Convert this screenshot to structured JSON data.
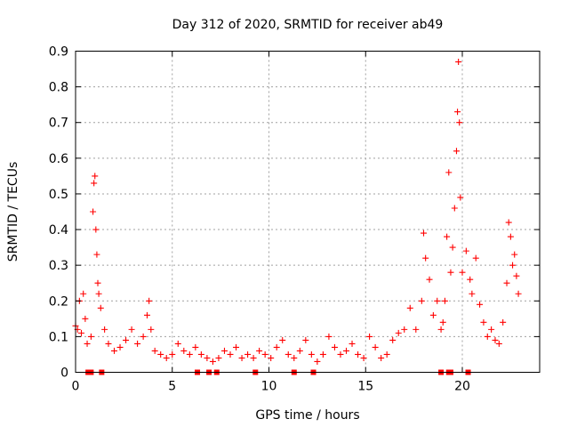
{
  "chart_data": {
    "type": "scatter",
    "title": "Day 312 of 2020, SRMTID for receiver ab49",
    "xlabel": "GPS time / hours",
    "ylabel": "SRMTID / TECUs",
    "xlim": [
      0,
      24
    ],
    "ylim": [
      0,
      0.9
    ],
    "xticks": [
      0,
      5,
      10,
      15,
      20
    ],
    "xtick_labels": [
      "0",
      "5",
      "10",
      "15",
      "20"
    ],
    "yticks": [
      0,
      0.1,
      0.2,
      0.3,
      0.4,
      0.5,
      0.6,
      0.7,
      0.8,
      0.9
    ],
    "ytick_labels": [
      "0",
      "0.1",
      "0.2",
      "0.3",
      "0.4",
      "0.5",
      "0.6",
      "0.7",
      "0.8",
      "0.9"
    ],
    "grid": true,
    "marker": "+",
    "marker_color": "#ff0000",
    "series": [
      {
        "name": "SRMTID",
        "x": [
          0.0,
          0.1,
          0.2,
          0.3,
          0.4,
          0.5,
          0.6,
          0.8,
          0.9,
          0.95,
          1.0,
          1.05,
          1.1,
          1.15,
          1.2,
          1.3,
          1.5,
          1.7,
          2.0,
          2.3,
          2.6,
          2.9,
          3.2,
          3.5,
          3.7,
          3.8,
          3.9,
          4.1,
          4.4,
          4.7,
          5.0,
          5.3,
          5.6,
          5.9,
          6.2,
          6.5,
          6.8,
          7.1,
          7.4,
          7.7,
          8.0,
          8.3,
          8.6,
          8.9,
          9.2,
          9.5,
          9.8,
          10.1,
          10.4,
          10.7,
          11.0,
          11.3,
          11.6,
          11.9,
          12.2,
          12.5,
          12.8,
          13.1,
          13.4,
          13.7,
          14.0,
          14.3,
          14.6,
          14.9,
          15.2,
          15.5,
          15.8,
          16.1,
          16.4,
          16.7,
          17.0,
          17.3,
          17.6,
          17.9,
          18.0,
          18.1,
          18.3,
          18.5,
          18.7,
          18.9,
          19.0,
          19.1,
          19.2,
          19.3,
          19.4,
          19.5,
          19.6,
          19.7,
          19.75,
          19.8,
          19.85,
          19.9,
          20.0,
          20.2,
          20.4,
          20.5,
          20.7,
          20.9,
          21.1,
          21.3,
          21.5,
          21.7,
          21.9,
          22.1,
          22.3,
          22.4,
          22.5,
          22.6,
          22.7,
          22.8,
          22.9
        ],
        "y": [
          0.13,
          0.12,
          0.2,
          0.11,
          0.22,
          0.15,
          0.08,
          0.1,
          0.45,
          0.53,
          0.55,
          0.4,
          0.33,
          0.25,
          0.22,
          0.18,
          0.12,
          0.08,
          0.06,
          0.07,
          0.09,
          0.12,
          0.08,
          0.1,
          0.16,
          0.2,
          0.12,
          0.06,
          0.05,
          0.04,
          0.05,
          0.08,
          0.06,
          0.05,
          0.07,
          0.05,
          0.04,
          0.03,
          0.04,
          0.06,
          0.05,
          0.07,
          0.04,
          0.05,
          0.04,
          0.06,
          0.05,
          0.04,
          0.07,
          0.09,
          0.05,
          0.04,
          0.06,
          0.09,
          0.05,
          0.03,
          0.05,
          0.1,
          0.07,
          0.05,
          0.06,
          0.08,
          0.05,
          0.04,
          0.1,
          0.07,
          0.04,
          0.05,
          0.09,
          0.11,
          0.12,
          0.18,
          0.12,
          0.2,
          0.39,
          0.32,
          0.26,
          0.16,
          0.2,
          0.12,
          0.14,
          0.2,
          0.38,
          0.56,
          0.28,
          0.35,
          0.46,
          0.62,
          0.73,
          0.87,
          0.7,
          0.49,
          0.28,
          0.34,
          0.26,
          0.22,
          0.32,
          0.19,
          0.14,
          0.1,
          0.12,
          0.09,
          0.08,
          0.14,
          0.25,
          0.42,
          0.38,
          0.3,
          0.33,
          0.27,
          0.22
        ]
      },
      {
        "name": "zero-value markers",
        "x": [
          0.65,
          0.7,
          0.75,
          0.8,
          1.35,
          6.3,
          6.9,
          7.3,
          9.3,
          11.3,
          12.3,
          18.9,
          19.3,
          19.4,
          20.3
        ],
        "y": [
          0,
          0,
          0,
          0,
          0,
          0,
          0,
          0,
          0,
          0,
          0,
          0,
          0,
          0,
          0
        ]
      }
    ]
  }
}
